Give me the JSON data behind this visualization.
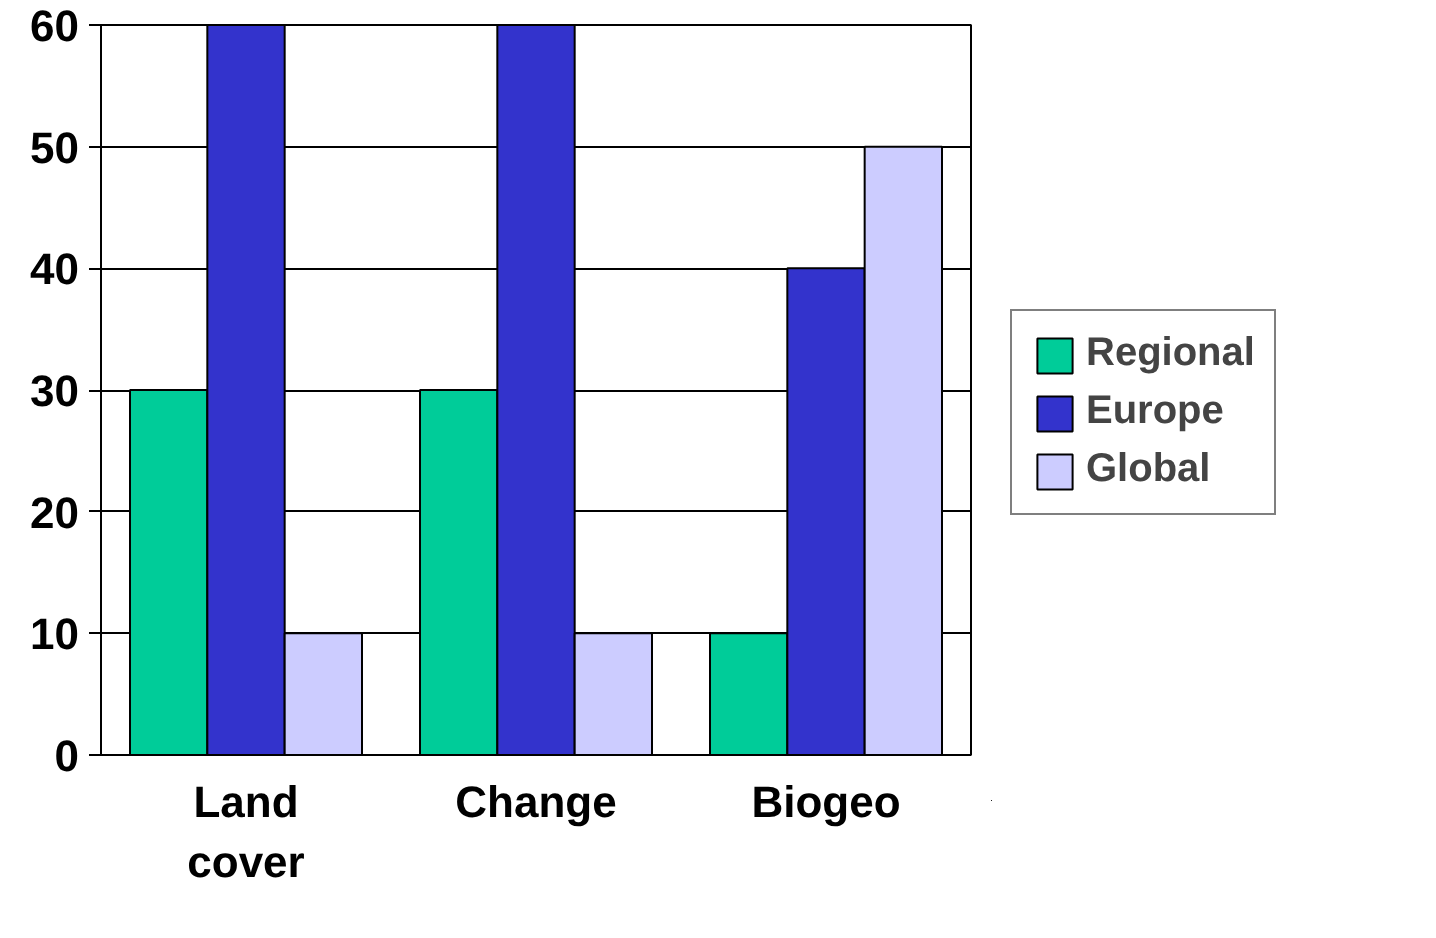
{
  "chart_data": {
    "type": "bar",
    "categories": [
      "Land cover",
      "Change",
      "Biogeo"
    ],
    "series": [
      {
        "name": "Regional",
        "color": "#00cc99",
        "values": [
          30,
          30,
          10
        ]
      },
      {
        "name": "Europe",
        "color": "#3333cc",
        "values": [
          60,
          60,
          40
        ]
      },
      {
        "name": "Global",
        "color": "#ccccff",
        "values": [
          10,
          10,
          50
        ]
      }
    ],
    "ylim": [
      0,
      60
    ],
    "yticks": [
      0,
      10,
      20,
      30,
      40,
      50,
      60
    ],
    "grid": "y",
    "legend": "right"
  }
}
